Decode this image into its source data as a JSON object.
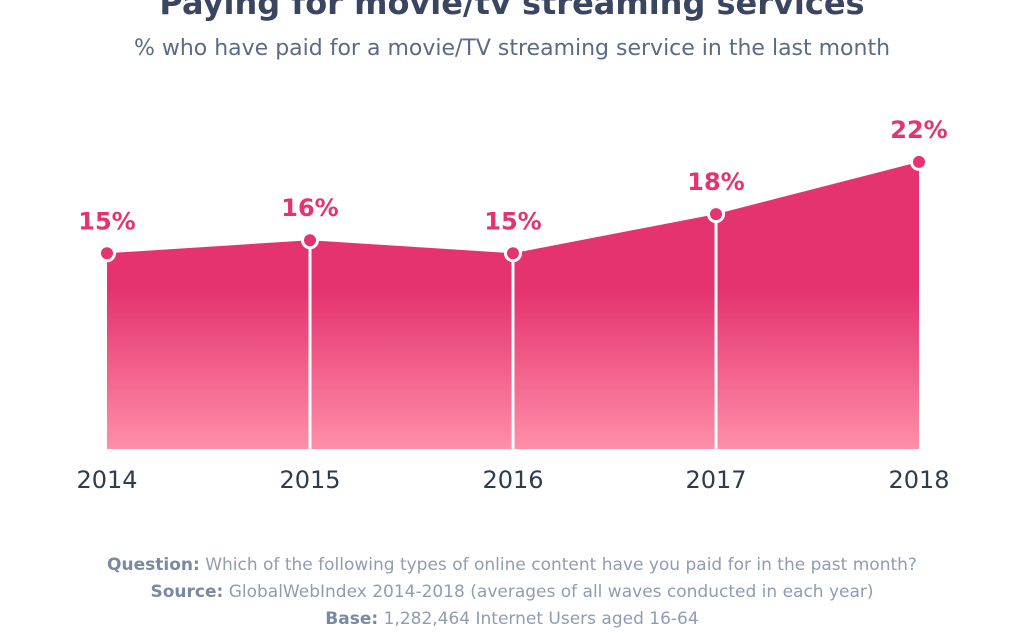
{
  "title": "Paying for movie/tv streaming services",
  "subtitle": "% who have paid for a movie/TV streaming service in the last month",
  "colors": {
    "accent": "#e5336f",
    "fill_top": "#e5336f",
    "fill_bottom": "#fe8fa8",
    "axis_text": "#2e3b52",
    "footer_text": "#8f9cb3"
  },
  "chart_data": {
    "type": "area",
    "categories": [
      "2014",
      "2015",
      "2016",
      "2017",
      "2018"
    ],
    "series": [
      {
        "values": [
          15,
          16,
          15,
          18,
          22
        ],
        "labels": [
          "15%",
          "16%",
          "15%",
          "18%",
          "22%"
        ]
      }
    ],
    "ylim": [
      0,
      24
    ],
    "grid": false,
    "legend": "none"
  },
  "footer": {
    "question_label": "Question:",
    "question_text": "Which of the following types of online content have you paid for in the past month?",
    "source_label": "Source:",
    "source_text": "GlobalWebIndex 2014-2018 (averages of all waves conducted in each year)",
    "base_label": "Base:",
    "base_text": "1,282,464 Internet Users aged 16-64"
  }
}
